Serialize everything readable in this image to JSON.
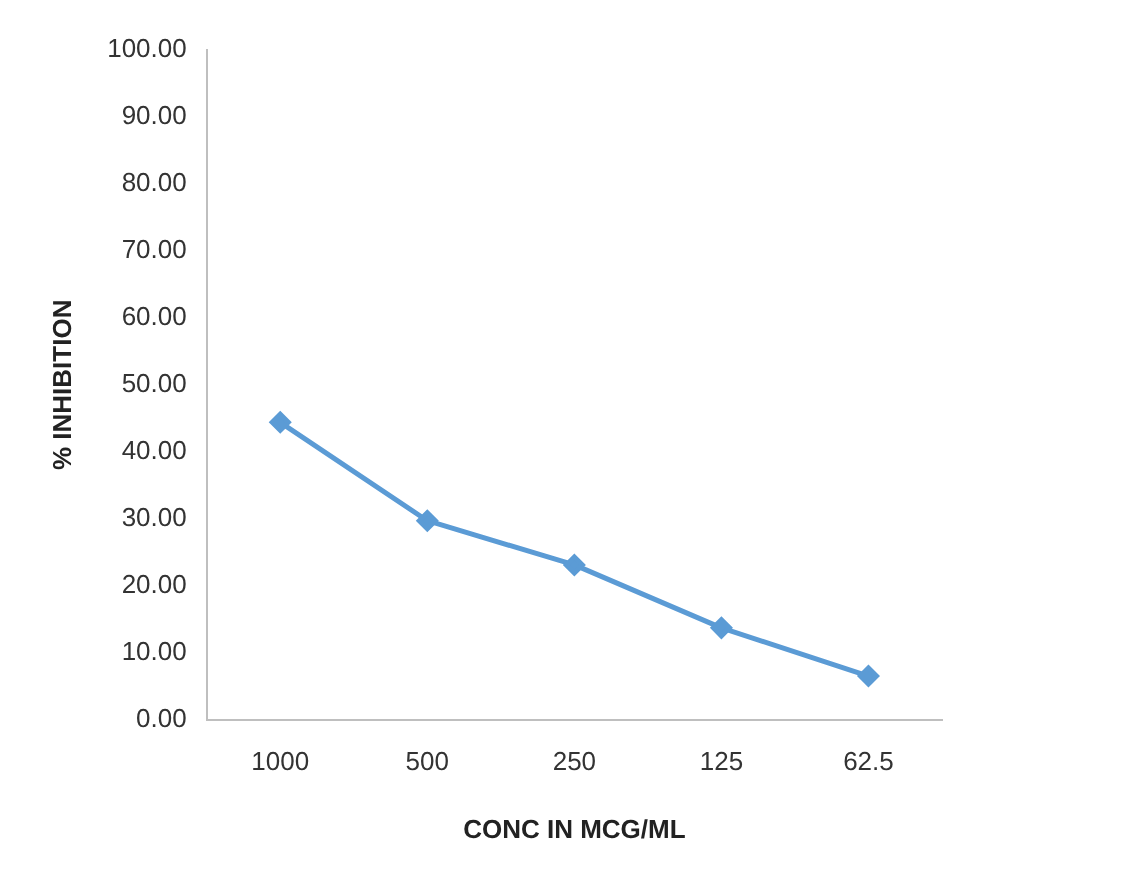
{
  "chart_data": {
    "type": "line",
    "xlabel": "CONC IN MCG/ML",
    "ylabel": "% INHIBITION",
    "categories": [
      "1000",
      "500",
      "250",
      "125",
      "62.5"
    ],
    "series": [
      {
        "color": "#5b9bd5",
        "values": [
          44.4,
          29.7,
          23.1,
          13.7,
          6.5
        ]
      }
    ],
    "ylim": [
      0,
      100
    ],
    "yticks": [
      {
        "value": 0,
        "label": "0.00"
      },
      {
        "value": 10,
        "label": "10.00"
      },
      {
        "value": 20,
        "label": "20.00"
      },
      {
        "value": 30,
        "label": "30.00"
      },
      {
        "value": 40,
        "label": "40.00"
      },
      {
        "value": 50,
        "label": "50.00"
      },
      {
        "value": 60,
        "label": "60.00"
      },
      {
        "value": 70,
        "label": "70.00"
      },
      {
        "value": 80,
        "label": "80.00"
      },
      {
        "value": 90,
        "label": "90.00"
      },
      {
        "value": 100,
        "label": "100.00"
      }
    ],
    "grid": false,
    "legend": false,
    "marker": "diamond",
    "line_style": "solid"
  }
}
